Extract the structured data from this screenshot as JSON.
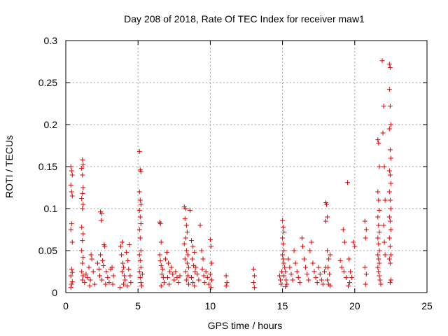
{
  "chart_data": {
    "type": "scatter",
    "title": "Day 208 of 2018, Rate Of TEC Index for receiver maw1",
    "xlabel": "GPS time / hours",
    "ylabel": "ROTI / TECUs",
    "xlim": [
      0,
      25
    ],
    "ylim": [
      0,
      0.3
    ],
    "xticks": [
      0,
      5,
      10,
      15,
      20,
      25
    ],
    "xtick_labels": [
      "0",
      "5",
      "10",
      "15",
      "20",
      "25"
    ],
    "yticks": [
      0,
      0.05,
      0.1,
      0.15,
      0.2,
      0.25,
      0.3
    ],
    "ytick_labels": [
      "0",
      "0.05",
      "0.1",
      "0.15",
      "0.2",
      "0.25",
      "0.3"
    ],
    "grid": true,
    "marker": "+",
    "color": "#e00000",
    "series": [
      {
        "name": "ROTI",
        "points": [
          [
            0.35,
            0.15
          ],
          [
            0.4,
            0.145
          ],
          [
            0.45,
            0.14
          ],
          [
            0.35,
            0.128
          ],
          [
            0.4,
            0.12
          ],
          [
            0.45,
            0.115
          ],
          [
            0.4,
            0.082
          ],
          [
            0.35,
            0.075
          ],
          [
            0.45,
            0.06
          ],
          [
            0.4,
            0.028
          ],
          [
            0.35,
            0.02
          ],
          [
            0.45,
            0.013
          ],
          [
            0.4,
            0.01
          ],
          [
            0.35,
            0.006
          ],
          [
            0.45,
            0.024
          ],
          [
            1.15,
            0.158
          ],
          [
            1.2,
            0.152
          ],
          [
            1.1,
            0.148
          ],
          [
            1.15,
            0.14
          ],
          [
            1.2,
            0.125
          ],
          [
            1.15,
            0.118
          ],
          [
            1.1,
            0.112
          ],
          [
            1.2,
            0.105
          ],
          [
            1.15,
            0.1
          ],
          [
            1.1,
            0.078
          ],
          [
            1.2,
            0.07
          ],
          [
            1.15,
            0.062
          ],
          [
            1.1,
            0.05
          ],
          [
            1.2,
            0.042
          ],
          [
            1.15,
            0.035
          ],
          [
            1.1,
            0.025
          ],
          [
            1.2,
            0.02
          ],
          [
            1.15,
            0.015
          ],
          [
            1.3,
            0.012
          ],
          [
            1.4,
            0.022
          ],
          [
            1.5,
            0.018
          ],
          [
            1.6,
            0.03
          ],
          [
            1.7,
            0.015
          ],
          [
            1.8,
            0.04
          ],
          [
            1.9,
            0.025
          ],
          [
            2.0,
            0.01
          ],
          [
            1.75,
            0.045
          ],
          [
            1.65,
            0.008
          ],
          [
            2.2,
            0.035
          ],
          [
            2.3,
            0.028
          ],
          [
            2.35,
            0.02
          ],
          [
            2.4,
            0.096
          ],
          [
            2.5,
            0.094
          ],
          [
            2.45,
            0.086
          ],
          [
            2.4,
            0.045
          ],
          [
            2.55,
            0.038
          ],
          [
            2.6,
            0.032
          ],
          [
            2.65,
            0.057
          ],
          [
            2.7,
            0.055
          ],
          [
            2.8,
            0.025
          ],
          [
            2.9,
            0.018
          ],
          [
            3.0,
            0.012
          ],
          [
            2.75,
            0.01
          ],
          [
            2.5,
            0.015
          ],
          [
            3.1,
            0.028
          ],
          [
            3.2,
            0.03
          ],
          [
            3.3,
            0.02
          ],
          [
            3.25,
            0.01
          ],
          [
            3.8,
            0.055
          ],
          [
            3.9,
            0.06
          ],
          [
            3.85,
            0.045
          ],
          [
            3.95,
            0.035
          ],
          [
            4.0,
            0.03
          ],
          [
            3.9,
            0.025
          ],
          [
            4.05,
            0.02
          ],
          [
            4.1,
            0.015
          ],
          [
            4.0,
            0.01
          ],
          [
            4.2,
            0.048
          ],
          [
            4.3,
            0.038
          ],
          [
            4.35,
            0.028
          ],
          [
            4.4,
            0.057
          ],
          [
            4.45,
            0.02
          ],
          [
            4.5,
            0.012
          ],
          [
            4.25,
            0.008
          ],
          [
            3.75,
            0.006
          ],
          [
            5.1,
            0.168
          ],
          [
            5.15,
            0.146
          ],
          [
            5.2,
            0.144
          ],
          [
            5.1,
            0.12
          ],
          [
            5.15,
            0.11
          ],
          [
            5.2,
            0.105
          ],
          [
            5.1,
            0.098
          ],
          [
            5.15,
            0.09
          ],
          [
            5.2,
            0.082
          ],
          [
            5.1,
            0.075
          ],
          [
            5.15,
            0.065
          ],
          [
            5.2,
            0.05
          ],
          [
            5.1,
            0.045
          ],
          [
            5.15,
            0.038
          ],
          [
            5.2,
            0.03
          ],
          [
            5.1,
            0.025
          ],
          [
            5.15,
            0.018
          ],
          [
            5.2,
            0.012
          ],
          [
            5.25,
            0.008
          ],
          [
            5.3,
            0.022
          ],
          [
            6.5,
            0.084
          ],
          [
            6.55,
            0.082
          ],
          [
            6.6,
            0.06
          ],
          [
            6.5,
            0.045
          ],
          [
            6.55,
            0.038
          ],
          [
            6.6,
            0.032
          ],
          [
            6.7,
            0.028
          ],
          [
            6.65,
            0.022
          ],
          [
            6.75,
            0.018
          ],
          [
            6.8,
            0.012
          ],
          [
            6.6,
            0.008
          ],
          [
            6.9,
            0.04
          ],
          [
            7.0,
            0.048
          ],
          [
            7.1,
            0.035
          ],
          [
            7.2,
            0.025
          ],
          [
            7.05,
            0.018
          ],
          [
            7.15,
            0.01
          ],
          [
            7.3,
            0.03
          ],
          [
            7.4,
            0.022
          ],
          [
            7.5,
            0.015
          ],
          [
            7.6,
            0.025
          ],
          [
            7.7,
            0.018
          ],
          [
            7.8,
            0.012
          ],
          [
            7.9,
            0.02
          ],
          [
            8.2,
            0.102
          ],
          [
            8.3,
            0.1
          ],
          [
            8.25,
            0.088
          ],
          [
            8.35,
            0.08
          ],
          [
            8.4,
            0.072
          ],
          [
            8.3,
            0.065
          ],
          [
            8.2,
            0.058
          ],
          [
            8.35,
            0.05
          ],
          [
            8.45,
            0.045
          ],
          [
            8.25,
            0.04
          ],
          [
            8.4,
            0.035
          ],
          [
            8.5,
            0.03
          ],
          [
            8.3,
            0.025
          ],
          [
            8.45,
            0.02
          ],
          [
            8.35,
            0.015
          ],
          [
            8.5,
            0.01
          ],
          [
            8.6,
            0.098
          ],
          [
            8.7,
            0.062
          ],
          [
            8.8,
            0.055
          ],
          [
            8.9,
            0.048
          ],
          [
            8.75,
            0.04
          ],
          [
            8.85,
            0.032
          ],
          [
            8.95,
            0.025
          ],
          [
            8.7,
            0.018
          ],
          [
            8.8,
            0.012
          ],
          [
            8.9,
            0.008
          ],
          [
            9.0,
            0.03
          ],
          [
            9.1,
            0.022
          ],
          [
            9.2,
            0.015
          ],
          [
            9.3,
            0.08
          ],
          [
            9.4,
            0.05
          ],
          [
            9.5,
            0.04
          ],
          [
            9.45,
            0.028
          ],
          [
            9.55,
            0.02
          ],
          [
            9.6,
            0.012
          ],
          [
            9.7,
            0.025
          ],
          [
            9.8,
            0.018
          ],
          [
            9.9,
            0.01
          ],
          [
            10.0,
            0.063
          ],
          [
            10.05,
            0.055
          ],
          [
            10.1,
            0.035
          ],
          [
            10.0,
            0.022
          ],
          [
            10.1,
            0.015
          ],
          [
            10.05,
            0.006
          ],
          [
            11.1,
            0.02
          ],
          [
            11.15,
            0.012
          ],
          [
            11.1,
            0.008
          ],
          [
            13.0,
            0.028
          ],
          [
            13.05,
            0.02
          ],
          [
            13.0,
            0.012
          ],
          [
            13.05,
            0.006
          ],
          [
            14.8,
            0.02
          ],
          [
            14.85,
            0.015
          ],
          [
            14.9,
            0.01
          ],
          [
            14.95,
            0.025
          ],
          [
            15.0,
            0.086
          ],
          [
            15.05,
            0.078
          ],
          [
            15.1,
            0.072
          ],
          [
            15.0,
            0.065
          ],
          [
            15.05,
            0.058
          ],
          [
            15.1,
            0.05
          ],
          [
            15.0,
            0.045
          ],
          [
            15.05,
            0.04
          ],
          [
            15.1,
            0.035
          ],
          [
            15.15,
            0.03
          ],
          [
            15.2,
            0.025
          ],
          [
            15.1,
            0.02
          ],
          [
            15.25,
            0.015
          ],
          [
            15.3,
            0.01
          ],
          [
            15.2,
            0.007
          ],
          [
            15.4,
            0.04
          ],
          [
            15.5,
            0.03
          ],
          [
            15.6,
            0.022
          ],
          [
            15.7,
            0.015
          ],
          [
            15.8,
            0.05
          ],
          [
            15.9,
            0.035
          ],
          [
            16.0,
            0.025
          ],
          [
            16.1,
            0.018
          ],
          [
            16.2,
            0.012
          ],
          [
            16.35,
            0.065
          ],
          [
            16.4,
            0.055
          ],
          [
            16.5,
            0.04
          ],
          [
            16.6,
            0.03
          ],
          [
            16.7,
            0.022
          ],
          [
            16.8,
            0.015
          ],
          [
            16.9,
            0.05
          ],
          [
            17.0,
            0.06
          ],
          [
            17.1,
            0.035
          ],
          [
            17.2,
            0.025
          ],
          [
            17.3,
            0.018
          ],
          [
            17.4,
            0.012
          ],
          [
            17.5,
            0.03
          ],
          [
            17.6,
            0.022
          ],
          [
            17.7,
            0.015
          ],
          [
            17.8,
            0.01
          ],
          [
            18.0,
            0.107
          ],
          [
            18.05,
            0.105
          ],
          [
            18.1,
            0.09
          ],
          [
            18.0,
            0.085
          ],
          [
            18.1,
            0.05
          ],
          [
            18.2,
            0.04
          ],
          [
            18.15,
            0.03
          ],
          [
            18.25,
            0.022
          ],
          [
            18.1,
            0.015
          ],
          [
            18.2,
            0.01
          ],
          [
            18.3,
            0.008
          ],
          [
            18.0,
            0.03
          ],
          [
            17.9,
            0.025
          ],
          [
            18.3,
            0.045
          ],
          [
            19.0,
            0.038
          ],
          [
            19.1,
            0.03
          ],
          [
            19.2,
            0.075
          ],
          [
            19.3,
            0.06
          ],
          [
            19.25,
            0.025
          ],
          [
            19.4,
            0.018
          ],
          [
            19.5,
            0.131
          ],
          [
            19.6,
            0.04
          ],
          [
            19.7,
            0.025
          ],
          [
            19.8,
            0.018
          ],
          [
            19.9,
            0.06
          ],
          [
            20.0,
            0.055
          ],
          [
            19.65,
            0.012
          ],
          [
            19.55,
            0.008
          ],
          [
            20.7,
            0.085
          ],
          [
            20.8,
            0.075
          ],
          [
            20.75,
            0.065
          ],
          [
            20.7,
            0.03
          ],
          [
            20.8,
            0.022
          ],
          [
            20.75,
            0.01
          ],
          [
            21.6,
            0.182
          ],
          [
            21.65,
            0.178
          ],
          [
            21.7,
            0.15
          ],
          [
            21.6,
            0.12
          ],
          [
            21.65,
            0.11
          ],
          [
            21.7,
            0.098
          ],
          [
            21.6,
            0.09
          ],
          [
            21.65,
            0.08
          ],
          [
            21.7,
            0.072
          ],
          [
            21.6,
            0.065
          ],
          [
            21.65,
            0.058
          ],
          [
            21.7,
            0.05
          ],
          [
            21.6,
            0.045
          ],
          [
            21.65,
            0.04
          ],
          [
            21.7,
            0.035
          ],
          [
            21.6,
            0.03
          ],
          [
            21.65,
            0.025
          ],
          [
            21.7,
            0.02
          ],
          [
            21.75,
            0.015
          ],
          [
            21.8,
            0.01
          ],
          [
            21.9,
            0.276
          ],
          [
            22.0,
            0.222
          ],
          [
            21.95,
            0.19
          ],
          [
            22.05,
            0.15
          ],
          [
            22.1,
            0.11
          ],
          [
            22.0,
            0.08
          ],
          [
            22.05,
            0.06
          ],
          [
            22.1,
            0.045
          ],
          [
            22.4,
            0.272
          ],
          [
            22.45,
            0.268
          ],
          [
            22.4,
            0.242
          ],
          [
            22.45,
            0.222
          ],
          [
            22.5,
            0.2
          ],
          [
            22.4,
            0.195
          ],
          [
            22.45,
            0.17
          ],
          [
            22.5,
            0.16
          ],
          [
            22.4,
            0.145
          ],
          [
            22.45,
            0.14
          ],
          [
            22.5,
            0.13
          ],
          [
            22.4,
            0.12
          ],
          [
            22.45,
            0.11
          ],
          [
            22.5,
            0.1
          ],
          [
            22.4,
            0.09
          ],
          [
            22.45,
            0.085
          ],
          [
            22.5,
            0.075
          ],
          [
            22.4,
            0.065
          ],
          [
            22.45,
            0.055
          ],
          [
            22.5,
            0.045
          ],
          [
            22.4,
            0.04
          ],
          [
            22.45,
            0.035
          ],
          [
            22.5,
            0.015
          ],
          [
            22.45,
            0.012
          ]
        ]
      }
    ]
  }
}
